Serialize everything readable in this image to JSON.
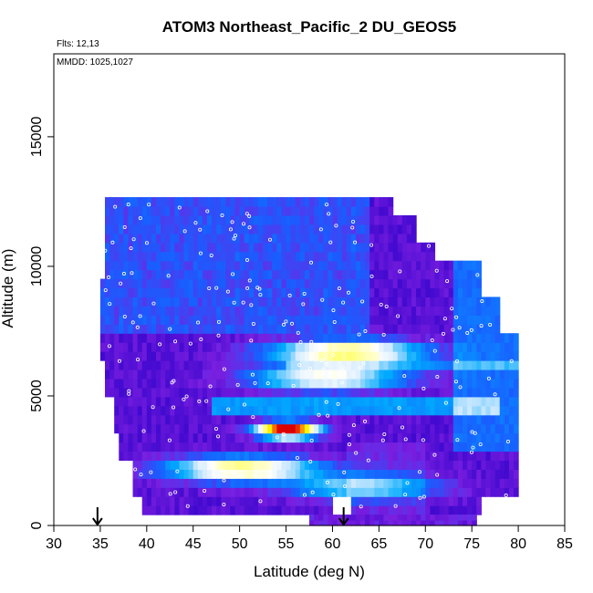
{
  "chart_data": {
    "type": "heatmap",
    "title": "ATOM3 Northeast_Pacific_2 DU_GEOS5",
    "annotations": {
      "flights": "Flts: 12,13",
      "dates": "MMDD: 1025,1027"
    },
    "xlabel": "Latitude (deg N)",
    "ylabel": "Altitude (m)",
    "xlim": [
      30,
      85
    ],
    "ylim": [
      0,
      18200
    ],
    "x_ticks": [
      30,
      35,
      40,
      45,
      50,
      55,
      60,
      65,
      70,
      75,
      80,
      85
    ],
    "y_ticks": [
      0,
      5000,
      10000,
      15000
    ],
    "x_tick_labels": [
      "30",
      "35",
      "40",
      "45",
      "50",
      "55",
      "60",
      "65",
      "70",
      "75",
      "80",
      "85"
    ],
    "y_tick_labels": [
      "0",
      "5000",
      "10000",
      "15000"
    ],
    "arrows_at_latitude": [
      34.7,
      61.2
    ],
    "colormap": [
      "#000088",
      "#2a00c8",
      "#7a1fe0",
      "#1a5cff",
      "#00aaff",
      "#cfe9ff",
      "#ffffff",
      "#ffff00",
      "#ff8800",
      "#dd0000"
    ],
    "hotspots": [
      {
        "lat": 55.2,
        "alt": 3700,
        "value": 1.0
      },
      {
        "lat": 61.5,
        "alt": 6700,
        "value": 0.58
      },
      {
        "lat": 50.3,
        "alt": 2200,
        "value": 0.55
      },
      {
        "lat": 59.5,
        "alt": 5700,
        "value": 0.45
      },
      {
        "lat": 63.0,
        "alt": 1500,
        "value": 0.3
      }
    ]
  }
}
